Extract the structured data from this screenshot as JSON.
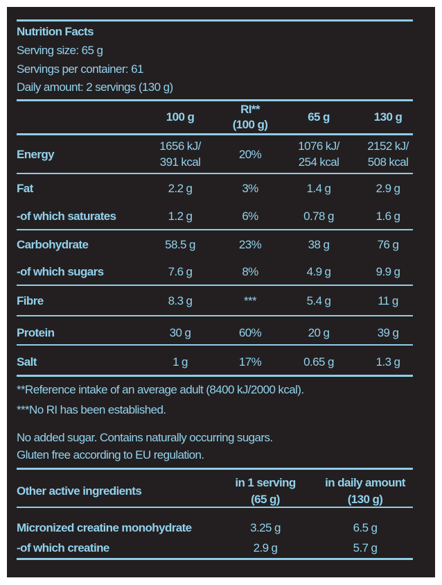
{
  "header": {
    "title": "Nutrition Facts",
    "serving_size": "Serving size: 65 g",
    "servings_per_container": "Servings per container: 61",
    "daily_amount": "Daily amount: 2 servings (130 g)"
  },
  "columns": [
    "100 g",
    "RI**\n(100 g)",
    "65 g",
    "130 g"
  ],
  "col_ri_1": "RI**",
  "col_ri_2": "(100 g)",
  "rows": [
    {
      "label": "Energy",
      "v": [
        "1656 kJ/",
        "20%",
        "1076 kJ/",
        "2152 kJ/"
      ],
      "v2": [
        "391 kcal",
        "",
        "254 kcal",
        "508 kcal"
      ]
    },
    {
      "label": "Fat",
      "v": [
        "2.2 g",
        "3%",
        "1.4 g",
        "2.9 g"
      ]
    },
    {
      "label": "-of which saturates",
      "v": [
        "1.2 g",
        "6%",
        "0.78 g",
        "1.6 g"
      ]
    },
    {
      "label": "Carbohydrate",
      "v": [
        "58.5 g",
        "23%",
        "38 g",
        "76 g"
      ]
    },
    {
      "label": "-of which sugars",
      "v": [
        "7.6 g",
        "8%",
        "4.9 g",
        "9.9 g"
      ]
    },
    {
      "label": "Fibre",
      "v": [
        "8.3 g",
        "***",
        "5.4 g",
        "11 g"
      ]
    },
    {
      "label": "Protein",
      "v": [
        "30 g",
        "60%",
        "20 g",
        "39 g"
      ]
    },
    {
      "label": "Salt",
      "v": [
        "1 g",
        "17%",
        "0.65 g",
        "1.3 g"
      ]
    }
  ],
  "notes": [
    "**Reference intake of an average adult (8400 kJ/2000 kcal).",
    "***No RI has been established.",
    "No added sugar. Contains naturally occurring sugars.",
    "Gluten free according to EU regulation."
  ],
  "other": {
    "title": "Other active ingredients",
    "col1a": "in 1 serving",
    "col1b": "(65 g)",
    "col2a": "in daily amount",
    "col2b": "(130 g)",
    "rows": [
      {
        "label": "Micronized creatine monohydrate",
        "v": [
          "3.25 g",
          "6.5 g"
        ]
      },
      {
        "label": "-of which creatine",
        "v": [
          "2.9 g",
          "5.7 g"
        ]
      }
    ]
  }
}
